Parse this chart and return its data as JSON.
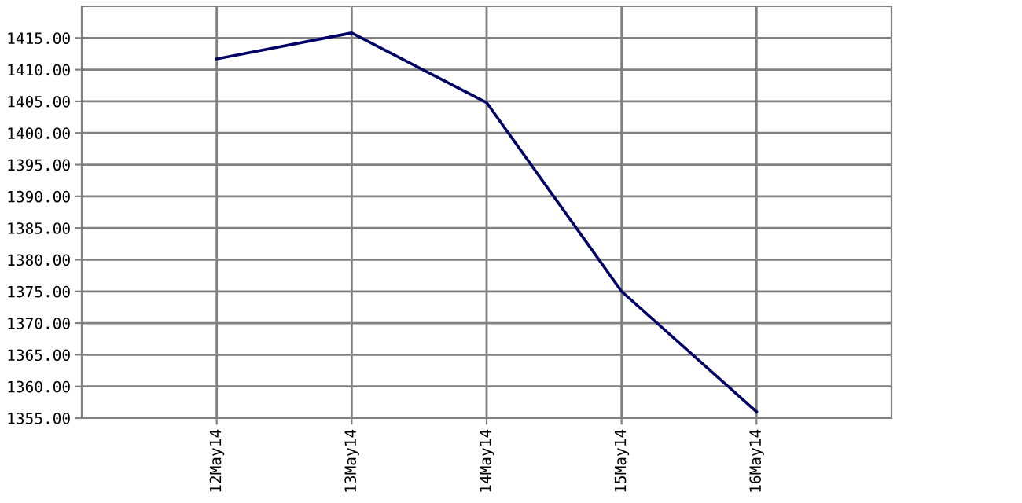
{
  "chart_data": {
    "type": "line",
    "categories": [
      "12May14",
      "13May14",
      "14May14",
      "15May14",
      "16May14"
    ],
    "series": [
      {
        "color": "#000066",
        "values": [
          1411.7,
          1415.8,
          1404.8,
          1375.0,
          1356.0
        ]
      }
    ],
    "ylim": [
      1355,
      1420
    ],
    "yticks": [
      {
        "value": 1355,
        "label": "1355.00"
      },
      {
        "value": 1360,
        "label": "1360.00"
      },
      {
        "value": 1365,
        "label": "1365.00"
      },
      {
        "value": 1370,
        "label": "1370.00"
      },
      {
        "value": 1375,
        "label": "1375.00"
      },
      {
        "value": 1380,
        "label": "1380.00"
      },
      {
        "value": 1385,
        "label": "1385.00"
      },
      {
        "value": 1390,
        "label": "1390.00"
      },
      {
        "value": 1395,
        "label": "1395.00"
      },
      {
        "value": 1400,
        "label": "1400.00"
      },
      {
        "value": 1405,
        "label": "1405.00"
      },
      {
        "value": 1410,
        "label": "1410.00"
      },
      {
        "value": 1415,
        "label": "1415.00"
      }
    ],
    "grid": true,
    "marker": "none",
    "line_style": "solid"
  }
}
